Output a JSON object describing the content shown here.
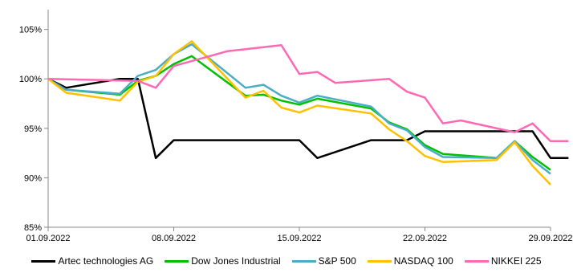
{
  "chart_data": {
    "type": "line",
    "title": "",
    "xlabel": "",
    "ylabel": "",
    "ylim": [
      85,
      107
    ],
    "yticks": [
      85,
      90,
      95,
      100,
      105
    ],
    "ytick_labels": [
      "85%",
      "90%",
      "95%",
      "100%",
      "105%"
    ],
    "xticks": [
      0,
      7,
      14,
      21,
      28
    ],
    "xtick_labels": [
      "01.09.2022",
      "08.09.2022",
      "15.09.2022",
      "22.09.2022",
      "29.09.2022"
    ],
    "x_domain": [
      0,
      28
    ],
    "grid": false,
    "legend_position": "bottom",
    "series": [
      {
        "name": "Artec technologies AG",
        "color": "#000000",
        "points": [
          [
            0,
            100.0
          ],
          [
            1,
            99.1
          ],
          [
            4,
            100.0
          ],
          [
            5,
            100.0
          ],
          [
            6,
            92.0
          ],
          [
            7,
            93.8
          ],
          [
            8,
            93.8
          ],
          [
            9,
            93.8
          ],
          [
            10,
            93.8
          ],
          [
            11,
            93.8
          ],
          [
            12,
            93.8
          ],
          [
            13,
            93.8
          ],
          [
            14,
            93.8
          ],
          [
            15,
            92.0
          ],
          [
            18,
            93.8
          ],
          [
            19,
            93.8
          ],
          [
            20,
            93.8
          ],
          [
            21,
            94.7
          ],
          [
            22,
            94.7
          ],
          [
            26,
            94.7
          ],
          [
            27,
            94.7
          ],
          [
            28,
            92.0
          ],
          [
            29,
            92.0
          ]
        ]
      },
      {
        "name": "Dow Jones Industrial",
        "color": "#00c000",
        "points": [
          [
            0,
            100.0
          ],
          [
            1,
            98.9
          ],
          [
            4,
            98.4
          ],
          [
            5,
            99.8
          ],
          [
            6,
            100.3
          ],
          [
            7,
            101.5
          ],
          [
            8,
            102.3
          ],
          [
            11,
            98.3
          ],
          [
            12,
            98.4
          ],
          [
            13,
            97.8
          ],
          [
            14,
            97.4
          ],
          [
            15,
            98.0
          ],
          [
            18,
            97.0
          ],
          [
            19,
            95.6
          ],
          [
            20,
            94.9
          ],
          [
            21,
            93.3
          ],
          [
            22,
            92.4
          ],
          [
            25,
            92.0
          ],
          [
            26,
            93.7
          ],
          [
            27,
            92.1
          ],
          [
            28,
            90.8
          ]
        ]
      },
      {
        "name": "S&P 500",
        "color": "#4bacc6",
        "points": [
          [
            0,
            100.0
          ],
          [
            1,
            98.9
          ],
          [
            4,
            98.5
          ],
          [
            5,
            100.3
          ],
          [
            6,
            100.9
          ],
          [
            7,
            102.5
          ],
          [
            8,
            103.5
          ],
          [
            11,
            99.1
          ],
          [
            12,
            99.4
          ],
          [
            13,
            98.3
          ],
          [
            14,
            97.6
          ],
          [
            15,
            98.3
          ],
          [
            18,
            97.2
          ],
          [
            19,
            95.5
          ],
          [
            20,
            94.8
          ],
          [
            21,
            93.1
          ],
          [
            22,
            92.1
          ],
          [
            25,
            92.0
          ],
          [
            26,
            93.7
          ],
          [
            27,
            91.8
          ],
          [
            28,
            90.4
          ]
        ]
      },
      {
        "name": "NASDAQ 100",
        "color": "#ffc000",
        "points": [
          [
            0,
            100.0
          ],
          [
            1,
            98.6
          ],
          [
            4,
            97.8
          ],
          [
            5,
            99.7
          ],
          [
            6,
            100.3
          ],
          [
            7,
            102.5
          ],
          [
            8,
            103.8
          ],
          [
            11,
            98.1
          ],
          [
            12,
            98.8
          ],
          [
            13,
            97.1
          ],
          [
            14,
            96.6
          ],
          [
            15,
            97.3
          ],
          [
            18,
            96.5
          ],
          [
            19,
            94.9
          ],
          [
            20,
            93.7
          ],
          [
            21,
            92.2
          ],
          [
            22,
            91.6
          ],
          [
            25,
            91.8
          ],
          [
            26,
            93.6
          ],
          [
            27,
            91.2
          ],
          [
            28,
            89.3
          ]
        ]
      },
      {
        "name": "NIKKEI 225",
        "color": "#ff69b4",
        "points": [
          [
            0,
            100.0
          ],
          [
            5,
            99.8
          ],
          [
            6,
            99.1
          ],
          [
            7,
            101.3
          ],
          [
            8,
            101.8
          ],
          [
            10,
            102.8
          ],
          [
            12,
            103.2
          ],
          [
            13,
            103.4
          ],
          [
            14,
            100.5
          ],
          [
            15,
            100.7
          ],
          [
            16,
            99.6
          ],
          [
            19,
            100.0
          ],
          [
            20,
            98.7
          ],
          [
            21,
            98.1
          ],
          [
            22,
            95.5
          ],
          [
            23,
            95.8
          ],
          [
            26,
            94.6
          ],
          [
            27,
            95.5
          ],
          [
            28,
            93.7
          ],
          [
            29,
            93.7
          ]
        ]
      }
    ]
  }
}
